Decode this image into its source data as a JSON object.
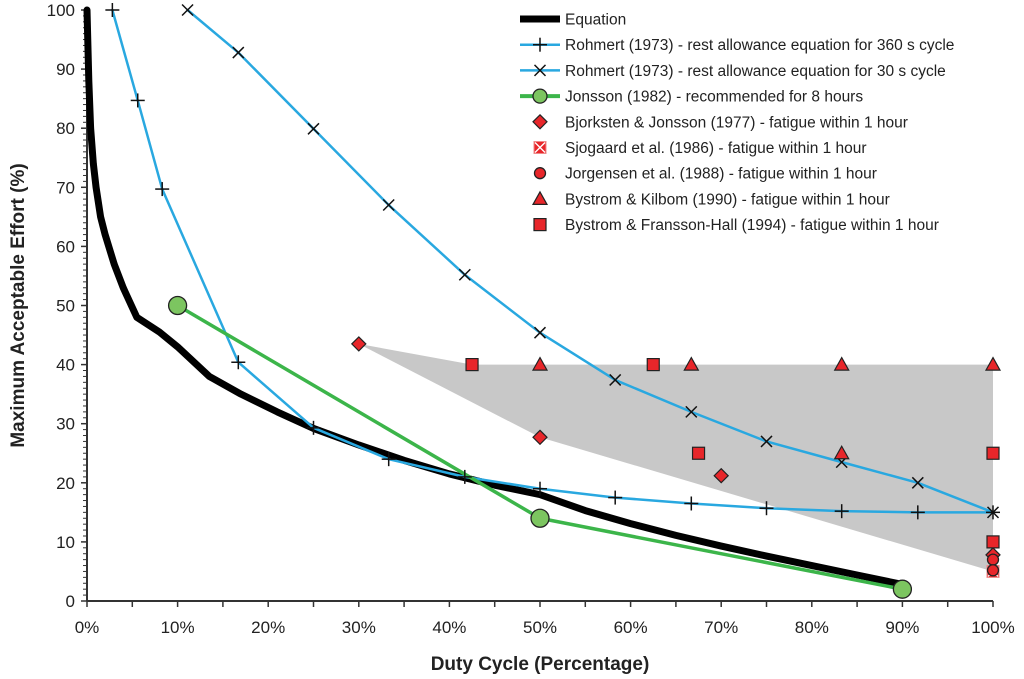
{
  "chart_data": {
    "type": "line",
    "title": "",
    "xlabel": "Duty Cycle (Percentage)",
    "ylabel": "Maximum Acceptable Effort (%)",
    "xlim": [
      0,
      100
    ],
    "ylim": [
      0,
      100
    ],
    "x_ticks": [
      0,
      10,
      20,
      30,
      40,
      50,
      60,
      70,
      80,
      90,
      100
    ],
    "x_tick_labels": [
      "0%",
      "10%",
      "20%",
      "30%",
      "40%",
      "50%",
      "60%",
      "70%",
      "80%",
      "90%",
      "100%"
    ],
    "x_minor_step": 5,
    "y_ticks": [
      0,
      10,
      20,
      30,
      40,
      50,
      60,
      70,
      80,
      90,
      100
    ],
    "y_tick_labels": [
      "0",
      "10",
      "20",
      "30",
      "40",
      "50",
      "60",
      "70",
      "80",
      "90",
      "100"
    ],
    "y_minor_step": 1,
    "grid": false,
    "legend_position": "top-right",
    "shaded_region": {
      "name": "fatigue-region",
      "color": "#c8c8c8",
      "points": [
        [
          30,
          43.5
        ],
        [
          42.5,
          40
        ],
        [
          100,
          40
        ],
        [
          100,
          5
        ],
        [
          50,
          27.7
        ]
      ]
    },
    "series": [
      {
        "name": "Equation",
        "kind": "line",
        "color": "#000000",
        "marker": "none",
        "x": [
          0,
          0.2,
          0.4,
          0.7,
          1,
          1.5,
          2,
          3,
          4,
          5.5,
          8,
          10,
          13.5,
          17,
          21,
          25,
          30,
          35,
          40,
          45,
          50,
          55,
          60,
          65,
          70,
          75,
          80,
          85,
          90
        ],
        "y": [
          100,
          88,
          80,
          74,
          70,
          65,
          62,
          57,
          53,
          48,
          45.5,
          43,
          38,
          35,
          32,
          29.2,
          26.4,
          23.8,
          21.5,
          19.6,
          18,
          15.3,
          13.1,
          11.1,
          9.3,
          7.6,
          6,
          4.4,
          2.8
        ]
      },
      {
        "name": "Rohmert (1973) - rest allowance equation for 360 s cycle",
        "kind": "line",
        "color": "#29a8e0",
        "marker": "plus",
        "x": [
          2.8,
          5.6,
          8.3,
          16.7,
          25,
          33.3,
          41.7,
          50,
          58.3,
          66.7,
          75,
          83.3,
          91.7,
          100
        ],
        "y": [
          100,
          84.7,
          69.7,
          40.4,
          29.3,
          24,
          21,
          19,
          17.5,
          16.5,
          15.7,
          15.2,
          15,
          15
        ]
      },
      {
        "name": "Rohmert (1973) - rest allowance equation for 30 s cycle",
        "kind": "line",
        "color": "#29a8e0",
        "marker": "x",
        "x": [
          11.1,
          16.7,
          25,
          33.3,
          41.7,
          50,
          58.3,
          66.7,
          75,
          83.3,
          91.7,
          100
        ],
        "y": [
          100,
          92.8,
          79.9,
          67,
          55.2,
          45.4,
          37.4,
          32,
          27,
          23.5,
          20,
          15
        ]
      },
      {
        "name": "Jonsson (1982) - recommended for 8 hours",
        "kind": "line",
        "color": "#3cb54a",
        "marker": "circle",
        "marker_fill": "#7cc560",
        "x": [
          10,
          50,
          90
        ],
        "y": [
          50,
          14,
          2
        ]
      },
      {
        "name": "Bjorksten & Jonsson (1977) - fatigue within 1 hour",
        "kind": "scatter",
        "color": "#e8262a",
        "marker": "diamond",
        "x": [
          30,
          50,
          70,
          100
        ],
        "y": [
          43.5,
          27.7,
          21.2,
          7.8
        ]
      },
      {
        "name": "Sjogaard et al. (1986) - fatigue within 1 hour",
        "kind": "scatter",
        "color": "#e8262a",
        "marker": "square-x",
        "x": [
          100
        ],
        "y": [
          5
        ]
      },
      {
        "name": "Jorgensen et al. (1988) - fatigue within 1 hour",
        "kind": "scatter",
        "color": "#e8262a",
        "marker": "circle",
        "x": [
          100,
          100
        ],
        "y": [
          7,
          5.2
        ]
      },
      {
        "name": "Bystrom & Kilbom (1990) - fatigue within 1 hour",
        "kind": "scatter",
        "color": "#e8262a",
        "marker": "triangle",
        "x": [
          50,
          66.7,
          83.3,
          100,
          83.3
        ],
        "y": [
          40,
          40,
          40,
          40,
          25
        ]
      },
      {
        "name": "Bystrom & Fransson-Hall (1994) - fatigue within 1 hour",
        "kind": "scatter",
        "color": "#e8262a",
        "marker": "square",
        "x": [
          42.5,
          62.5,
          67.5,
          100,
          100
        ],
        "y": [
          40,
          40,
          25,
          25,
          10
        ]
      }
    ]
  }
}
